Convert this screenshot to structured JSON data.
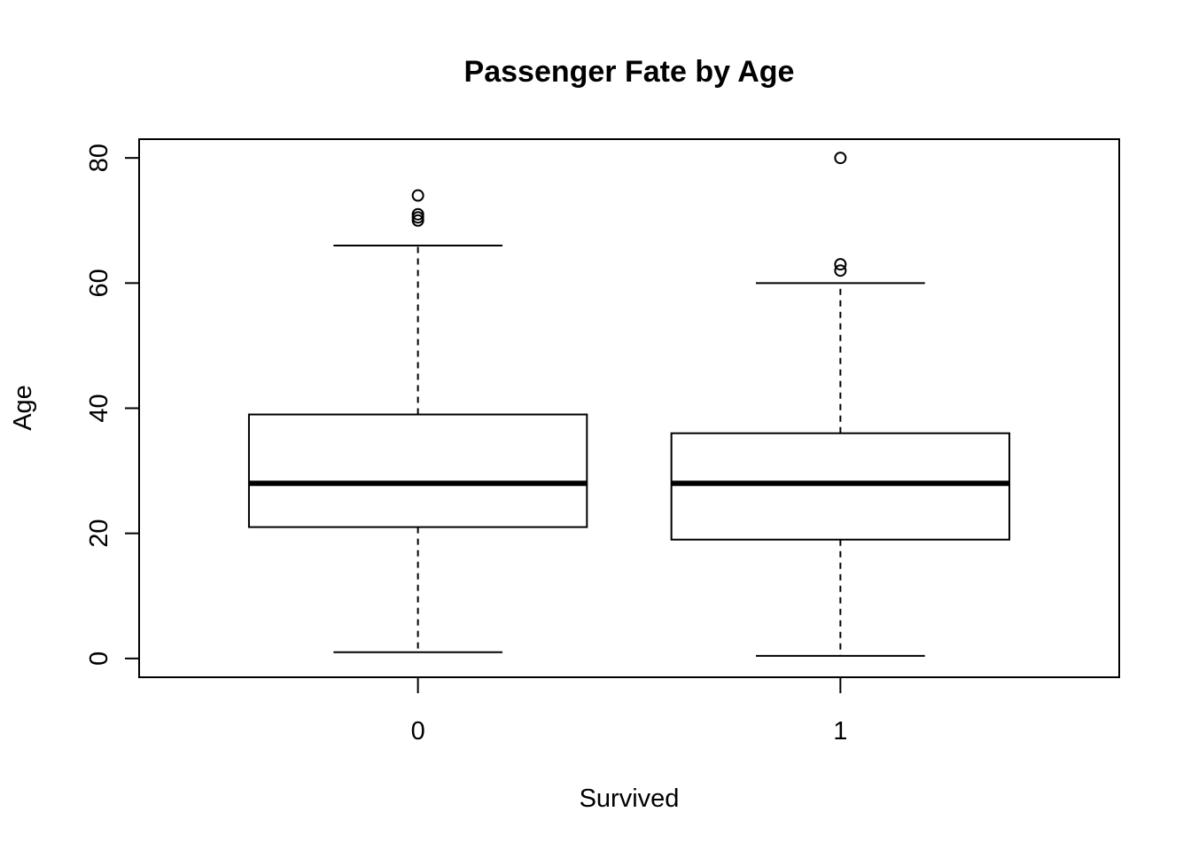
{
  "chart_data": {
    "type": "boxplot",
    "title": "Passenger Fate by Age",
    "xlabel": "Survived",
    "ylabel": "Age",
    "categories": [
      "0",
      "1"
    ],
    "ylim": [
      -3,
      83
    ],
    "yticks": [
      0,
      20,
      40,
      60,
      80
    ],
    "grid": false,
    "legend": "none",
    "boxes": [
      {
        "category": "0",
        "whisker_low": 1,
        "q1": 21,
        "median": 28,
        "q3": 39,
        "whisker_high": 66,
        "outliers": [
          70,
          70.5,
          71,
          74
        ]
      },
      {
        "category": "1",
        "whisker_low": 0.42,
        "q1": 19,
        "median": 28,
        "q3": 36,
        "whisker_high": 60,
        "outliers": [
          62,
          63,
          80
        ]
      }
    ]
  }
}
